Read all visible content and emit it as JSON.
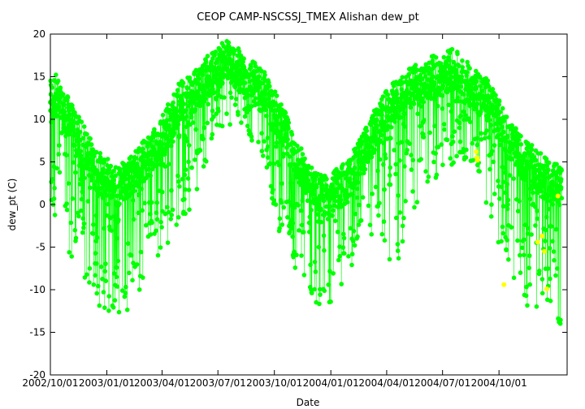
{
  "chart_data": {
    "type": "scatter",
    "title": "CEOP CAMP-NSCSSJ_TMEX Alishan  dew_pt",
    "xlabel": "Date",
    "ylabel": "dew_pt (C)",
    "ylim": [
      -20,
      20
    ],
    "yticks": [
      -20,
      -15,
      -10,
      -5,
      0,
      5,
      10,
      15,
      20
    ],
    "xlim": [
      "2002-10-01",
      "2005-01-20"
    ],
    "xticks": [
      {
        "date": "2002-10-01",
        "label": "2002/10/01"
      },
      {
        "date": "2003-01-01",
        "label": "2003/01/01"
      },
      {
        "date": "2003-04-01",
        "label": "2003/04/01"
      },
      {
        "date": "2003-07-01",
        "label": "2003/07/01"
      },
      {
        "date": "2003-10-01",
        "label": "2003/10/01"
      },
      {
        "date": "2004-01-01",
        "label": "2004/01/01"
      },
      {
        "date": "2004-04-01",
        "label": "2004/04/01"
      },
      {
        "date": "2004-07-01",
        "label": "2004/07/01"
      },
      {
        "date": "2004-10-01",
        "label": "2004/10/01"
      }
    ],
    "grid": false,
    "legend": "none",
    "series": [
      {
        "color": "#00ff00",
        "points": [
          [
            "2002-10-01",
            12
          ],
          [
            "2002-10-10",
            13
          ],
          [
            "2002-10-20",
            11
          ],
          [
            "2002-11-01",
            10
          ],
          [
            "2002-11-15",
            8
          ],
          [
            "2002-12-01",
            6
          ],
          [
            "2002-12-15",
            4
          ],
          [
            "2003-01-01",
            3
          ],
          [
            "2003-01-15",
            2
          ],
          [
            "2003-02-01",
            3
          ],
          [
            "2003-02-15",
            4
          ],
          [
            "2003-03-01",
            5
          ],
          [
            "2003-03-15",
            6
          ],
          [
            "2003-04-01",
            8
          ],
          [
            "2003-04-15",
            10
          ],
          [
            "2003-05-01",
            12
          ],
          [
            "2003-05-15",
            13
          ],
          [
            "2003-06-01",
            14
          ],
          [
            "2003-06-15",
            15
          ],
          [
            "2003-07-01",
            16
          ],
          [
            "2003-07-15",
            17
          ],
          [
            "2003-08-01",
            16
          ],
          [
            "2003-08-15",
            15
          ],
          [
            "2003-09-01",
            14
          ],
          [
            "2003-09-15",
            13
          ],
          [
            "2003-10-01",
            11
          ],
          [
            "2003-10-15",
            9
          ],
          [
            "2003-11-01",
            6
          ],
          [
            "2003-11-15",
            4
          ],
          [
            "2003-12-01",
            2
          ],
          [
            "2003-12-15",
            1
          ],
          [
            "2004-01-01",
            1
          ],
          [
            "2004-01-15",
            2
          ],
          [
            "2004-02-01",
            3
          ],
          [
            "2004-02-15",
            5
          ],
          [
            "2004-03-01",
            7
          ],
          [
            "2004-03-15",
            9
          ],
          [
            "2004-04-01",
            11
          ],
          [
            "2004-04-15",
            12
          ],
          [
            "2004-05-01",
            13
          ],
          [
            "2004-05-15",
            14
          ],
          [
            "2004-06-01",
            14
          ],
          [
            "2004-06-15",
            15
          ],
          [
            "2004-07-01",
            15
          ],
          [
            "2004-07-15",
            16
          ],
          [
            "2004-08-01",
            15
          ],
          [
            "2004-08-15",
            14
          ],
          [
            "2004-09-01",
            13
          ],
          [
            "2004-09-15",
            12
          ],
          [
            "2004-10-01",
            10
          ],
          [
            "2004-10-15",
            8
          ],
          [
            "2004-11-01",
            6
          ],
          [
            "2004-11-15",
            5
          ],
          [
            "2004-12-01",
            4
          ],
          [
            "2004-12-15",
            3
          ],
          [
            "2005-01-10",
            2
          ]
        ],
        "spread": [
          [
            "2002-10-01",
            -2,
            3
          ],
          [
            "2002-11-15",
            -8,
            2
          ],
          [
            "2002-12-15",
            -12,
            1
          ],
          [
            "2003-01-15",
            -13,
            1
          ],
          [
            "2003-02-15",
            -12,
            2
          ],
          [
            "2003-03-15",
            -8,
            2
          ],
          [
            "2003-04-15",
            -4,
            2
          ],
          [
            "2003-05-15",
            -1,
            2
          ],
          [
            "2003-07-01",
            9,
            2
          ],
          [
            "2003-08-15",
            9,
            2
          ],
          [
            "2003-09-15",
            4,
            2
          ],
          [
            "2003-10-15",
            -5,
            2
          ],
          [
            "2003-11-15",
            -10,
            2
          ],
          [
            "2003-12-15",
            -12,
            2
          ],
          [
            "2004-01-15",
            -11,
            2
          ],
          [
            "2004-02-15",
            -6,
            2
          ],
          [
            "2004-03-15",
            -4,
            2
          ],
          [
            "2004-04-15",
            -9,
            2
          ],
          [
            "2004-05-15",
            -1,
            2
          ],
          [
            "2004-07-01",
            4,
            2
          ],
          [
            "2004-08-15",
            5,
            2
          ],
          [
            "2004-09-15",
            -2,
            2
          ],
          [
            "2004-10-15",
            -7,
            2
          ],
          [
            "2004-11-15",
            -13,
            2
          ],
          [
            "2004-12-15",
            -12,
            2
          ],
          [
            "2005-01-15",
            -15,
            2
          ]
        ]
      },
      {
        "color": "#ffff00",
        "points": [
          [
            "2004-08-25",
            6.2
          ],
          [
            "2004-08-26",
            5.5
          ],
          [
            "2004-08-27",
            5.2
          ],
          [
            "2004-10-09",
            -9.4
          ],
          [
            "2004-12-03",
            -4.4
          ],
          [
            "2004-12-10",
            -3.7
          ],
          [
            "2004-12-14",
            -5.5
          ],
          [
            "2004-12-18",
            -9.9
          ],
          [
            "2005-01-05",
            1.0
          ]
        ]
      }
    ]
  }
}
